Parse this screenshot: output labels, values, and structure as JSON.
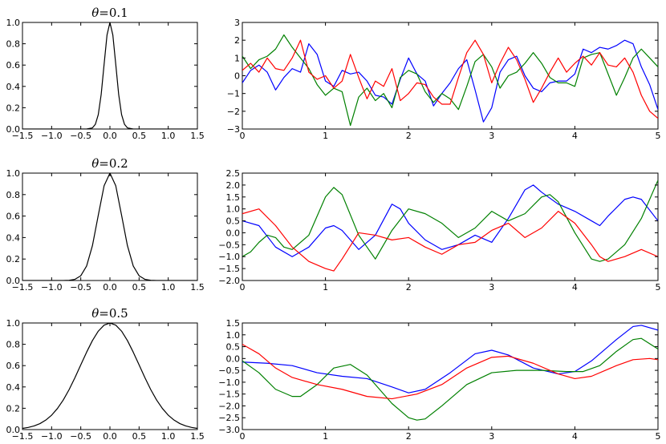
{
  "figure": {
    "background": "#ffffff",
    "line_colors": {
      "blue": "#0000ff",
      "green": "#008000",
      "red": "#ff0000",
      "black": "#000000"
    }
  },
  "chart_data": [
    {
      "id": "kernel-theta-0.1",
      "type": "line",
      "title_symbol": "θ",
      "title_value": "=0.1",
      "xlim": [
        -1.5,
        1.5
      ],
      "ylim": [
        0.0,
        1.0
      ],
      "xticks": [
        -1.5,
        -1.0,
        -0.5,
        0.0,
        0.5,
        1.0,
        1.5
      ],
      "xtick_labels": [
        "−1.5",
        "−1.0",
        "−0.5",
        "0.0",
        "0.5",
        "1.0",
        "1.5"
      ],
      "yticks": [
        0.0,
        0.2,
        0.4,
        0.6,
        0.8,
        1.0
      ],
      "ytick_labels": [
        "0.0",
        "0.2",
        "0.4",
        "0.6",
        "0.8",
        "1.0"
      ],
      "series": [
        {
          "color": "#000000",
          "x": [
            -1.5,
            -0.4,
            -0.3,
            -0.25,
            -0.2,
            -0.15,
            -0.1,
            -0.05,
            0.0,
            0.05,
            0.1,
            0.15,
            0.2,
            0.25,
            0.3,
            0.4,
            1.5
          ],
          "y": [
            0.0,
            0.0,
            0.011,
            0.044,
            0.135,
            0.325,
            0.607,
            0.882,
            1.0,
            0.882,
            0.607,
            0.325,
            0.135,
            0.044,
            0.011,
            0.0,
            0.0
          ]
        }
      ]
    },
    {
      "id": "samples-theta-0.1",
      "type": "line",
      "xlim": [
        0,
        5
      ],
      "ylim": [
        -3,
        3
      ],
      "xticks": [
        0,
        1,
        2,
        3,
        4,
        5
      ],
      "xtick_labels": [
        "0",
        "1",
        "2",
        "3",
        "4",
        "5"
      ],
      "yticks": [
        -3,
        -2,
        -1,
        0,
        1,
        2,
        3
      ],
      "ytick_labels": [
        "−3",
        "−2",
        "−1",
        "0",
        "1",
        "2",
        "3"
      ],
      "series": [
        {
          "color": "#0000ff",
          "x": [
            0,
            0.1,
            0.2,
            0.3,
            0.4,
            0.5,
            0.6,
            0.7,
            0.8,
            0.9,
            1.0,
            1.1,
            1.2,
            1.3,
            1.4,
            1.5,
            1.6,
            1.7,
            1.8,
            1.9,
            2.0,
            2.1,
            2.2,
            2.3,
            2.4,
            2.5,
            2.6,
            2.7,
            2.8,
            2.9,
            3.0,
            3.1,
            3.2,
            3.3,
            3.4,
            3.5,
            3.6,
            3.7,
            3.8,
            3.9,
            4.0,
            4.1,
            4.2,
            4.3,
            4.4,
            4.5,
            4.6,
            4.7,
            4.8,
            4.9,
            5.0
          ],
          "y": [
            -0.4,
            0.3,
            0.6,
            0.2,
            -0.8,
            -0.1,
            0.4,
            0.2,
            1.8,
            1.2,
            -0.3,
            -0.6,
            0.3,
            0.1,
            0.2,
            -0.3,
            -1.1,
            -1.2,
            -1.6,
            -0.2,
            1.0,
            0.1,
            -0.3,
            -1.7,
            -1.0,
            -0.4,
            0.4,
            0.9,
            -0.8,
            -2.6,
            -1.8,
            0.2,
            0.9,
            1.1,
            0.0,
            -0.7,
            -0.9,
            -0.4,
            -0.3,
            -0.3,
            0.1,
            1.5,
            1.3,
            1.6,
            1.5,
            1.7,
            2.0,
            1.8,
            0.5,
            -0.5,
            -1.9
          ]
        },
        {
          "color": "#008000",
          "x": [
            0,
            0.1,
            0.2,
            0.3,
            0.4,
            0.5,
            0.6,
            0.7,
            0.8,
            0.9,
            1.0,
            1.1,
            1.2,
            1.3,
            1.4,
            1.5,
            1.6,
            1.7,
            1.8,
            1.9,
            2.0,
            2.1,
            2.2,
            2.3,
            2.4,
            2.5,
            2.6,
            2.7,
            2.8,
            2.9,
            3.0,
            3.1,
            3.2,
            3.3,
            3.4,
            3.5,
            3.6,
            3.7,
            3.8,
            3.9,
            4.0,
            4.1,
            4.2,
            4.3,
            4.4,
            4.5,
            4.6,
            4.7,
            4.8,
            4.9,
            5.0
          ],
          "y": [
            1.1,
            0.4,
            0.9,
            1.1,
            1.5,
            2.3,
            1.6,
            1.0,
            0.4,
            -0.5,
            -1.1,
            -0.7,
            -0.9,
            -2.8,
            -1.2,
            -0.7,
            -1.4,
            -1.0,
            -1.8,
            -0.1,
            0.3,
            0.1,
            -0.9,
            -1.5,
            -1.0,
            -1.3,
            -1.9,
            -0.6,
            0.8,
            1.2,
            0.5,
            -0.7,
            0.0,
            0.2,
            0.7,
            1.3,
            0.7,
            -0.1,
            -0.4,
            -0.4,
            -0.6,
            1.0,
            1.2,
            1.3,
            0.1,
            -1.1,
            -0.1,
            1.0,
            1.5,
            1.0,
            0.5
          ]
        },
        {
          "color": "#ff0000",
          "x": [
            0,
            0.1,
            0.2,
            0.3,
            0.4,
            0.5,
            0.6,
            0.7,
            0.8,
            0.9,
            1.0,
            1.1,
            1.2,
            1.3,
            1.4,
            1.5,
            1.6,
            1.7,
            1.8,
            1.9,
            2.0,
            2.1,
            2.2,
            2.3,
            2.4,
            2.5,
            2.6,
            2.7,
            2.8,
            2.9,
            3.0,
            3.1,
            3.2,
            3.3,
            3.4,
            3.5,
            3.6,
            3.7,
            3.8,
            3.9,
            4.0,
            4.1,
            4.2,
            4.3,
            4.4,
            4.5,
            4.6,
            4.7,
            4.8,
            4.9,
            5.0
          ],
          "y": [
            0.3,
            0.7,
            0.2,
            1.0,
            0.4,
            0.3,
            1.0,
            2.0,
            0.2,
            -0.2,
            0.0,
            -0.7,
            -0.3,
            1.2,
            -0.1,
            -1.3,
            -0.3,
            -0.6,
            0.4,
            -1.4,
            -1.0,
            -0.4,
            -0.5,
            -1.2,
            -1.6,
            -1.6,
            -0.1,
            1.3,
            2.0,
            1.2,
            -0.4,
            0.7,
            1.6,
            0.9,
            -0.2,
            -1.5,
            -0.7,
            0.2,
            1.0,
            0.2,
            0.7,
            1.1,
            0.6,
            1.3,
            0.6,
            0.5,
            1.0,
            0.2,
            -1.1,
            -2.0,
            -2.4
          ]
        }
      ]
    },
    {
      "id": "kernel-theta-0.2",
      "type": "line",
      "title_symbol": "θ",
      "title_value": "=0.2",
      "xlim": [
        -1.5,
        1.5
      ],
      "ylim": [
        0.0,
        1.0
      ],
      "xticks": [
        -1.5,
        -1.0,
        -0.5,
        0.0,
        0.5,
        1.0,
        1.5
      ],
      "xtick_labels": [
        "−1.5",
        "−1.0",
        "−0.5",
        "0.0",
        "0.5",
        "1.0",
        "1.5"
      ],
      "yticks": [
        0.0,
        0.2,
        0.4,
        0.6,
        0.8,
        1.0
      ],
      "ytick_labels": [
        "0.0",
        "0.2",
        "0.4",
        "0.6",
        "0.8",
        "1.0"
      ],
      "series": [
        {
          "color": "#000000",
          "x": [
            -1.5,
            -0.9,
            -0.8,
            -0.7,
            -0.6,
            -0.5,
            -0.4,
            -0.3,
            -0.2,
            -0.1,
            0.0,
            0.1,
            0.2,
            0.3,
            0.4,
            0.5,
            0.6,
            0.7,
            0.8,
            0.9,
            1.5
          ],
          "y": [
            0.0,
            0.0,
            0.0003,
            0.002,
            0.011,
            0.044,
            0.135,
            0.325,
            0.607,
            0.882,
            1.0,
            0.882,
            0.607,
            0.325,
            0.135,
            0.044,
            0.011,
            0.002,
            0.0003,
            0.0,
            0.0
          ]
        }
      ]
    },
    {
      "id": "samples-theta-0.2",
      "type": "line",
      "xlim": [
        0,
        5
      ],
      "ylim": [
        -2.0,
        2.5
      ],
      "xticks": [
        0,
        1,
        2,
        3,
        4,
        5
      ],
      "xtick_labels": [
        "0",
        "1",
        "2",
        "3",
        "4",
        "5"
      ],
      "yticks": [
        -2.0,
        -1.5,
        -1.0,
        -0.5,
        0.0,
        0.5,
        1.0,
        1.5,
        2.0,
        2.5
      ],
      "ytick_labels": [
        "−2.0",
        "−1.5",
        "−1.0",
        "−0.5",
        "0.0",
        "0.5",
        "1.0",
        "1.5",
        "2.0",
        "2.5"
      ],
      "series": [
        {
          "color": "#0000ff",
          "x": [
            0,
            0.2,
            0.4,
            0.6,
            0.8,
            1.0,
            1.1,
            1.2,
            1.4,
            1.6,
            1.8,
            1.9,
            2.0,
            2.2,
            2.4,
            2.6,
            2.8,
            3.0,
            3.2,
            3.4,
            3.5,
            3.6,
            3.8,
            4.0,
            4.2,
            4.3,
            4.4,
            4.6,
            4.7,
            4.8,
            5.0
          ],
          "y": [
            0.5,
            0.3,
            -0.6,
            -1.0,
            -0.6,
            0.2,
            0.3,
            0.1,
            -0.7,
            -0.1,
            1.2,
            1.0,
            0.4,
            -0.3,
            -0.7,
            -0.5,
            -0.1,
            -0.4,
            0.6,
            1.8,
            2.0,
            1.7,
            1.2,
            0.9,
            0.5,
            0.3,
            0.7,
            1.4,
            1.5,
            1.4,
            0.5
          ]
        },
        {
          "color": "#008000",
          "x": [
            0,
            0.1,
            0.2,
            0.3,
            0.4,
            0.5,
            0.6,
            0.8,
            1.0,
            1.1,
            1.2,
            1.4,
            1.6,
            1.8,
            2.0,
            2.2,
            2.4,
            2.6,
            2.8,
            3.0,
            3.2,
            3.4,
            3.6,
            3.7,
            3.8,
            4.0,
            4.2,
            4.3,
            4.4,
            4.6,
            4.8,
            5.0
          ],
          "y": [
            -1.0,
            -0.8,
            -0.4,
            -0.1,
            -0.2,
            -0.6,
            -0.7,
            -0.1,
            1.5,
            1.9,
            1.6,
            -0.1,
            -1.1,
            0.1,
            1.0,
            0.8,
            0.4,
            -0.2,
            0.2,
            0.9,
            0.5,
            0.8,
            1.5,
            1.6,
            1.3,
            0.0,
            -1.1,
            -1.2,
            -1.1,
            -0.5,
            0.6,
            2.2
          ]
        },
        {
          "color": "#ff0000",
          "x": [
            0,
            0.2,
            0.4,
            0.6,
            0.8,
            1.0,
            1.1,
            1.2,
            1.4,
            1.6,
            1.8,
            2.0,
            2.2,
            2.4,
            2.6,
            2.8,
            3.0,
            3.2,
            3.4,
            3.6,
            3.8,
            4.0,
            4.2,
            4.3,
            4.4,
            4.6,
            4.8,
            5.0
          ],
          "y": [
            0.8,
            1.0,
            0.3,
            -0.6,
            -1.2,
            -1.5,
            -1.6,
            -1.1,
            0.0,
            -0.1,
            -0.3,
            -0.2,
            -0.6,
            -0.9,
            -0.5,
            -0.4,
            0.1,
            0.4,
            -0.2,
            0.2,
            0.9,
            0.4,
            -0.5,
            -1.0,
            -1.2,
            -1.0,
            -0.7,
            -1.0
          ]
        }
      ]
    },
    {
      "id": "kernel-theta-0.5",
      "type": "line",
      "title_symbol": "θ",
      "title_value": "=0.5",
      "xlim": [
        -1.5,
        1.5
      ],
      "ylim": [
        0.0,
        1.0
      ],
      "xticks": [
        -1.5,
        -1.0,
        -0.5,
        0.0,
        0.5,
        1.0,
        1.5
      ],
      "xtick_labels": [
        "−1.5",
        "−1.0",
        "−0.5",
        "0.0",
        "0.5",
        "1.0",
        "1.5"
      ],
      "yticks": [
        0.0,
        0.2,
        0.4,
        0.6,
        0.8,
        1.0
      ],
      "ytick_labels": [
        "0.0",
        "0.2",
        "0.4",
        "0.6",
        "0.8",
        "1.0"
      ],
      "series": [
        {
          "color": "#000000",
          "x": [
            -1.5,
            -1.4,
            -1.3,
            -1.2,
            -1.1,
            -1.0,
            -0.9,
            -0.8,
            -0.7,
            -0.6,
            -0.5,
            -0.4,
            -0.3,
            -0.2,
            -0.1,
            0.0,
            0.1,
            0.2,
            0.3,
            0.4,
            0.5,
            0.6,
            0.7,
            0.8,
            0.9,
            1.0,
            1.1,
            1.2,
            1.3,
            1.4,
            1.5
          ],
          "y": [
            0.011,
            0.02,
            0.034,
            0.056,
            0.089,
            0.135,
            0.198,
            0.278,
            0.375,
            0.487,
            0.607,
            0.726,
            0.835,
            0.923,
            0.98,
            1.0,
            0.98,
            0.923,
            0.835,
            0.726,
            0.607,
            0.487,
            0.375,
            0.278,
            0.198,
            0.135,
            0.089,
            0.056,
            0.034,
            0.02,
            0.011
          ]
        }
      ]
    },
    {
      "id": "samples-theta-0.5",
      "type": "line",
      "xlim": [
        0,
        5
      ],
      "ylim": [
        -3.0,
        1.5
      ],
      "xticks": [
        0,
        1,
        2,
        3,
        4,
        5
      ],
      "xtick_labels": [
        "0",
        "1",
        "2",
        "3",
        "4",
        "5"
      ],
      "yticks": [
        -3.0,
        -2.5,
        -2.0,
        -1.5,
        -1.0,
        -0.5,
        0.0,
        0.5,
        1.0,
        1.5
      ],
      "ytick_labels": [
        "−3.0",
        "−2.5",
        "−2.0",
        "−1.5",
        "−1.0",
        "−0.5",
        "0.0",
        "0.5",
        "1.0",
        "1.5"
      ],
      "series": [
        {
          "color": "#0000ff",
          "x": [
            0,
            0.3,
            0.6,
            0.9,
            1.2,
            1.5,
            1.8,
            2.0,
            2.2,
            2.5,
            2.8,
            3.0,
            3.2,
            3.5,
            3.8,
            4.0,
            4.2,
            4.5,
            4.7,
            4.8,
            5.0
          ],
          "y": [
            -0.15,
            -0.2,
            -0.3,
            -0.6,
            -0.75,
            -0.85,
            -1.2,
            -1.45,
            -1.3,
            -0.6,
            0.2,
            0.35,
            0.15,
            -0.4,
            -0.65,
            -0.55,
            -0.1,
            0.8,
            1.35,
            1.4,
            1.2
          ]
        },
        {
          "color": "#008000",
          "x": [
            0,
            0.2,
            0.4,
            0.6,
            0.7,
            0.9,
            1.1,
            1.3,
            1.5,
            1.8,
            2.0,
            2.1,
            2.2,
            2.4,
            2.7,
            3.0,
            3.3,
            3.6,
            3.9,
            4.1,
            4.3,
            4.5,
            4.7,
            4.8,
            5.0
          ],
          "y": [
            -0.1,
            -0.6,
            -1.3,
            -1.6,
            -1.6,
            -1.1,
            -0.4,
            -0.25,
            -0.7,
            -1.9,
            -2.5,
            -2.6,
            -2.55,
            -2.0,
            -1.1,
            -0.6,
            -0.5,
            -0.5,
            -0.55,
            -0.55,
            -0.3,
            0.3,
            0.8,
            0.85,
            0.4
          ]
        },
        {
          "color": "#ff0000",
          "x": [
            0,
            0.2,
            0.4,
            0.6,
            0.9,
            1.2,
            1.5,
            1.8,
            2.1,
            2.4,
            2.7,
            3.0,
            3.2,
            3.5,
            3.8,
            4.0,
            4.2,
            4.5,
            4.7,
            4.9,
            5.0
          ],
          "y": [
            0.6,
            0.2,
            -0.4,
            -0.8,
            -1.1,
            -1.3,
            -1.6,
            -1.7,
            -1.5,
            -1.1,
            -0.4,
            0.05,
            0.1,
            -0.2,
            -0.65,
            -0.85,
            -0.75,
            -0.3,
            -0.05,
            0.0,
            -0.05
          ]
        }
      ]
    }
  ]
}
